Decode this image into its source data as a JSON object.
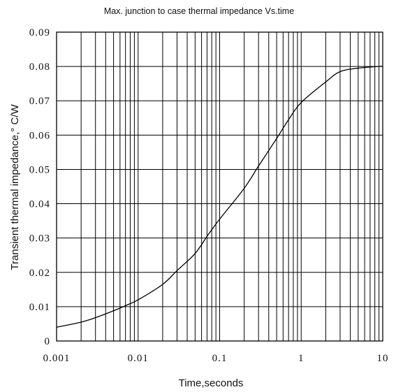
{
  "chart_data": {
    "type": "line",
    "title": "Max. junction to case thermal impedance Vs.time",
    "xlabel": "Time,seconds",
    "ylabel": "Transient thermal impedance,° C/W",
    "x_scale": "log",
    "xlim": [
      0.001,
      10
    ],
    "ylim": [
      0,
      0.09
    ],
    "grid": true,
    "x_ticks": [
      "0.001",
      "0.01",
      "0.1",
      "1",
      "10"
    ],
    "y_ticks": [
      "0",
      "0.01",
      "0.02",
      "0.03",
      "0.04",
      "0.05",
      "0.06",
      "0.07",
      "0.08",
      "0.09"
    ],
    "series": [
      {
        "x": [
          0.001,
          0.002,
          0.003,
          0.005,
          0.007,
          0.01,
          0.02,
          0.03,
          0.05,
          0.07,
          0.1,
          0.2,
          0.3,
          0.5,
          0.7,
          1,
          2,
          3,
          5,
          10
        ],
        "y": [
          0.004,
          0.0055,
          0.0068,
          0.0088,
          0.0103,
          0.012,
          0.0165,
          0.0205,
          0.0255,
          0.0305,
          0.0355,
          0.0445,
          0.051,
          0.059,
          0.0645,
          0.0695,
          0.0755,
          0.0785,
          0.0795,
          0.0801
        ]
      }
    ]
  }
}
